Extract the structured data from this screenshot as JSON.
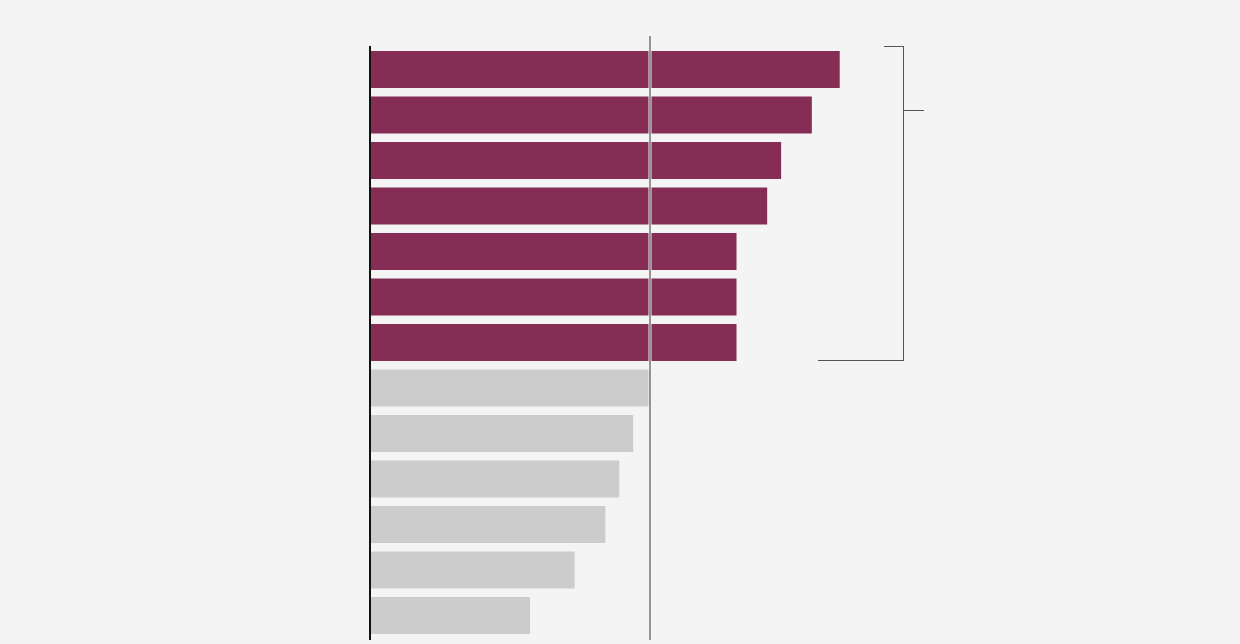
{
  "chart_data": {
    "type": "barh",
    "categories": [
      null,
      null,
      null,
      null,
      null,
      null,
      null,
      null,
      null,
      null,
      null,
      null,
      null
    ],
    "values": [
      168,
      158,
      147,
      142,
      131,
      131,
      131,
      100,
      94,
      89,
      84,
      73,
      57
    ],
    "colors": [
      "#852d55",
      "#852d55",
      "#852d55",
      "#852d55",
      "#852d55",
      "#852d55",
      "#852d55",
      "#cccccc",
      "#cccccc",
      "#cccccc",
      "#cccccc",
      "#cccccc",
      "#cccccc"
    ],
    "xlim": [
      0,
      200
    ],
    "reference_line": 100
  }
}
